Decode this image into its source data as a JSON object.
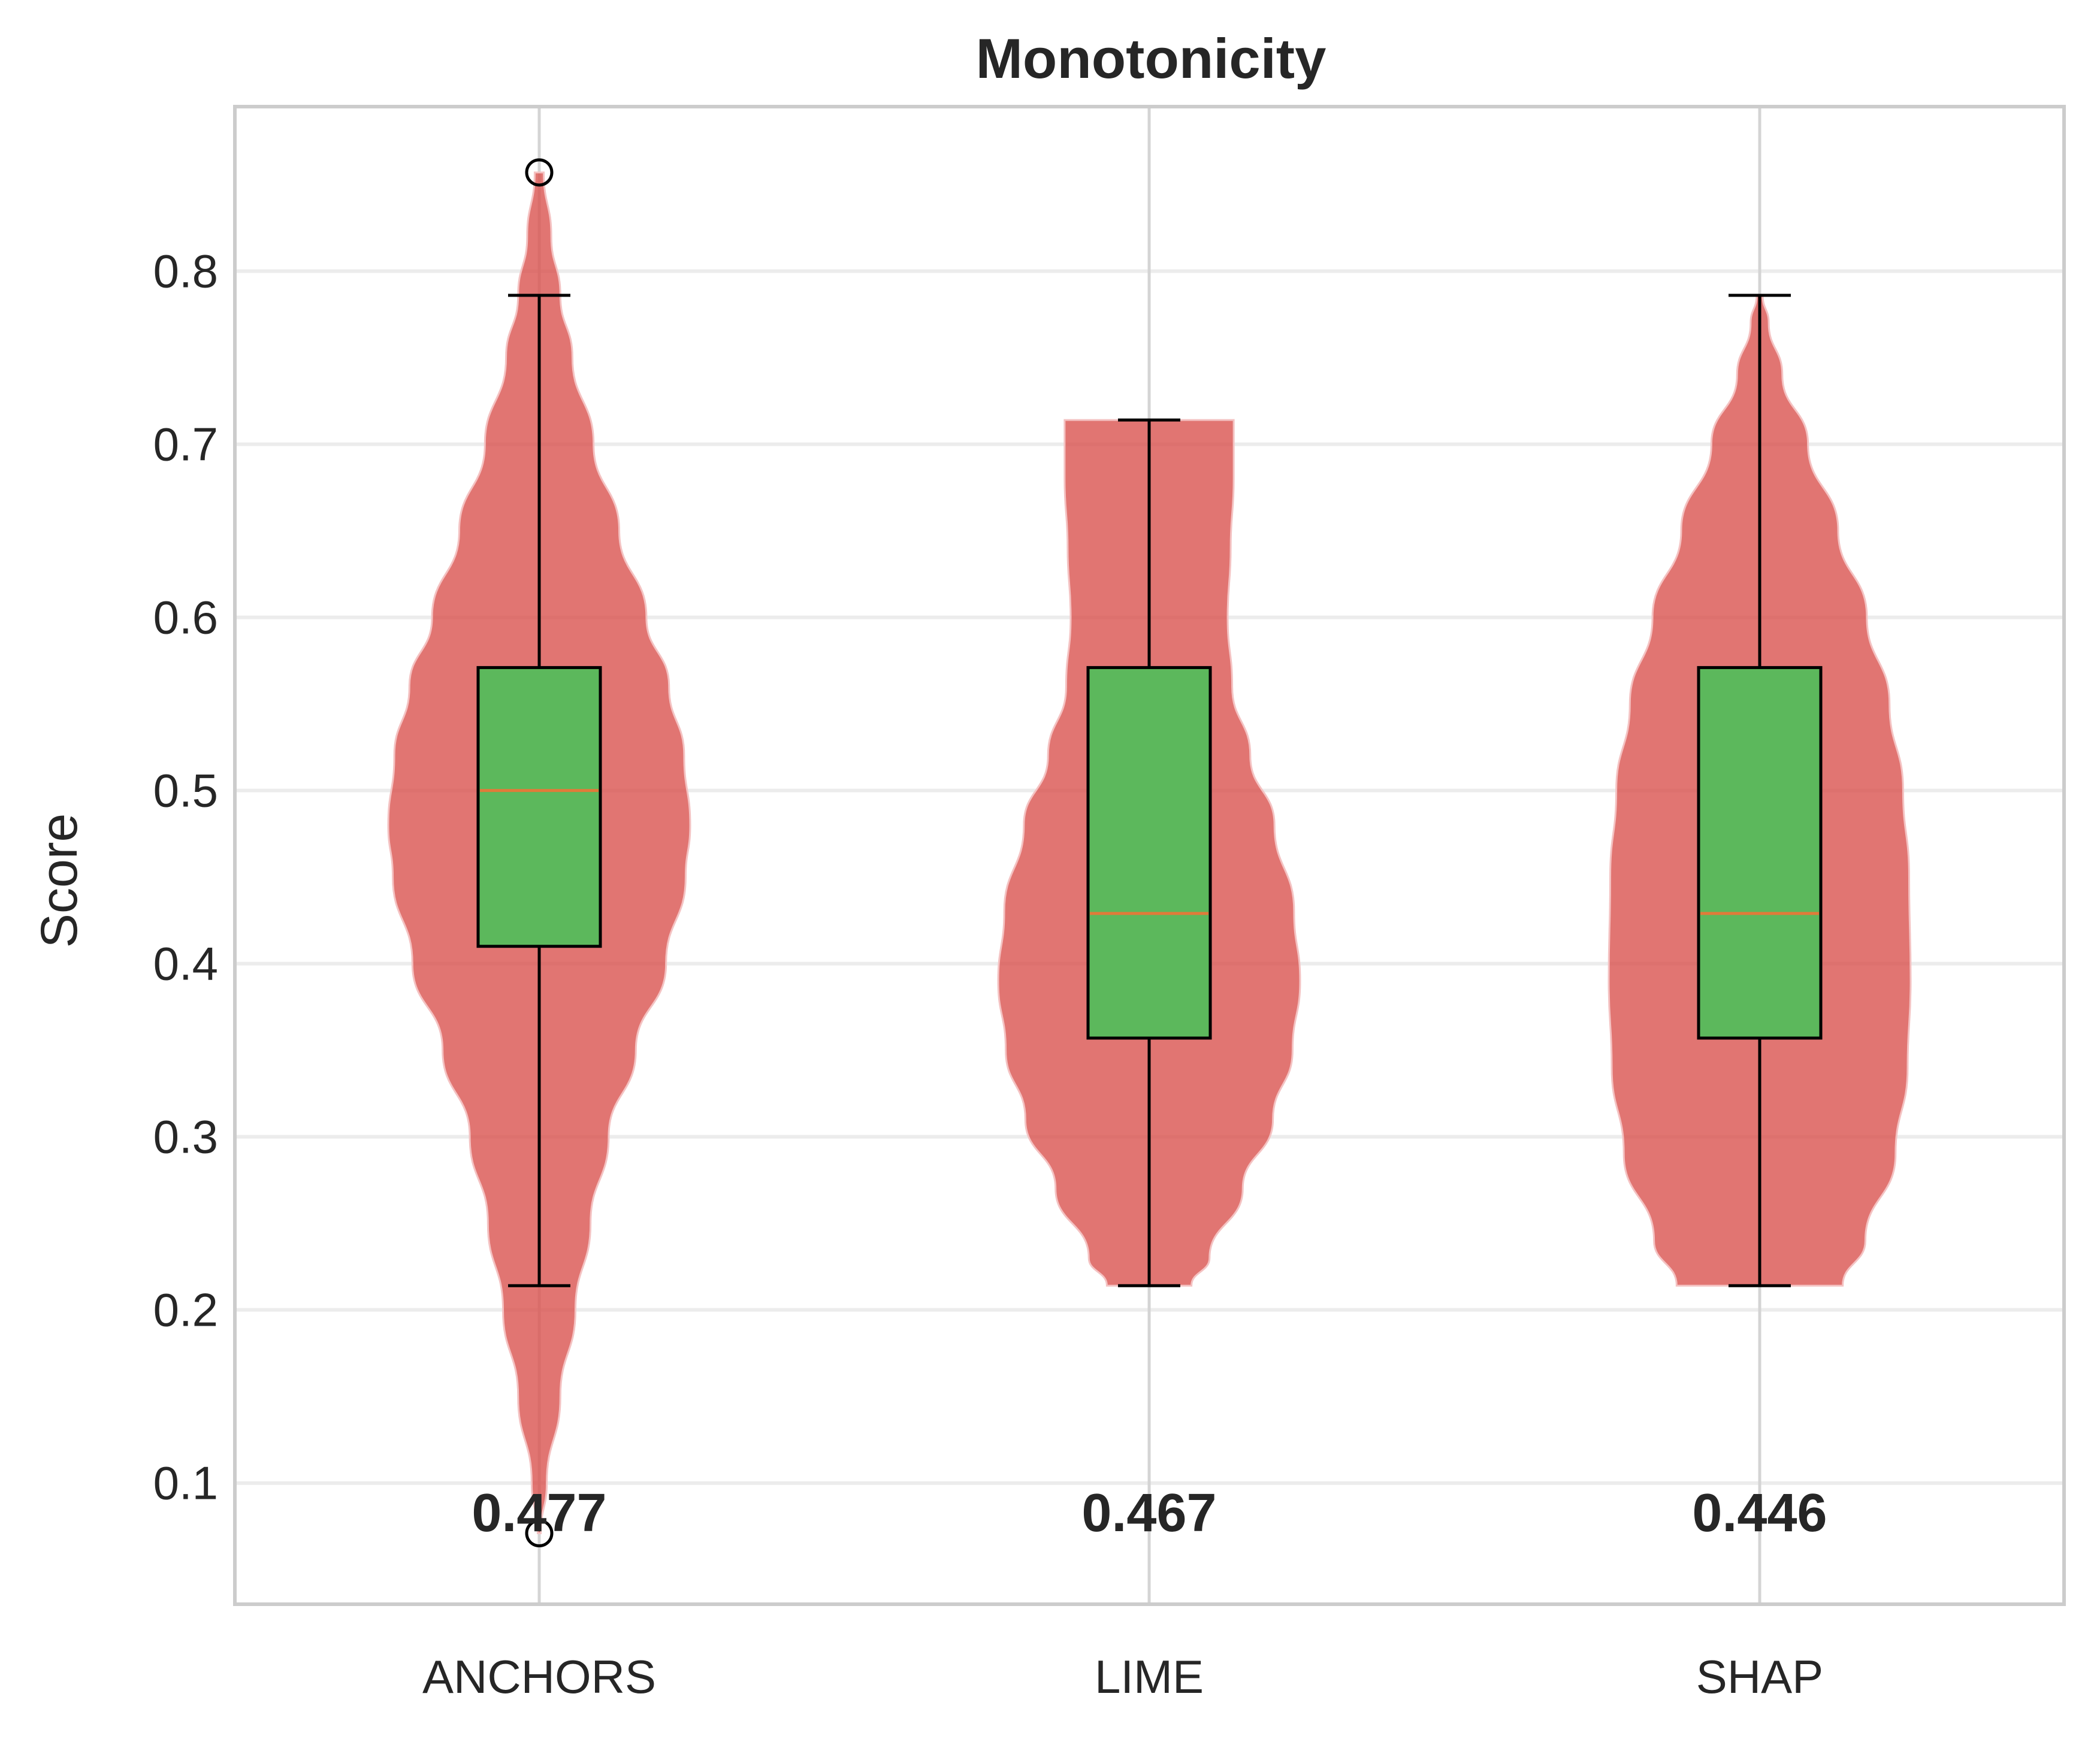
{
  "chart_data": {
    "type": "violin",
    "title": "Monotonicity",
    "xlabel": "",
    "ylabel": "Score",
    "ylim": [
      0.03,
      0.895
    ],
    "yticks": [
      "0.1",
      "0.2",
      "0.3",
      "0.4",
      "0.5",
      "0.6",
      "0.7",
      "0.8"
    ],
    "grid": true,
    "categories": [
      "ANCHORS",
      "LIME",
      "SHAP"
    ],
    "colors": {
      "violin": "#d9534f",
      "box": "#5cb85c",
      "median": "#e07b39",
      "whisker": "#000000"
    },
    "series": [
      {
        "category": "ANCHORS",
        "mean_label": "0.477",
        "box": {
          "q1": 0.41,
          "median": 0.5,
          "q3": 0.571,
          "whisker_low": 0.214,
          "whisker_high": 0.786
        },
        "outliers": [
          0.857,
          0.071
        ],
        "density": [
          [
            0.071,
            0.01
          ],
          [
            0.1,
            0.05
          ],
          [
            0.15,
            0.14
          ],
          [
            0.2,
            0.24
          ],
          [
            0.25,
            0.34
          ],
          [
            0.3,
            0.46
          ],
          [
            0.35,
            0.64
          ],
          [
            0.4,
            0.84
          ],
          [
            0.45,
            0.97
          ],
          [
            0.48,
            1.0
          ],
          [
            0.52,
            0.96
          ],
          [
            0.56,
            0.86
          ],
          [
            0.6,
            0.71
          ],
          [
            0.65,
            0.53
          ],
          [
            0.7,
            0.36
          ],
          [
            0.75,
            0.22
          ],
          [
            0.786,
            0.14
          ],
          [
            0.82,
            0.08
          ],
          [
            0.857,
            0.03
          ]
        ]
      },
      {
        "category": "LIME",
        "mean_label": "0.467",
        "box": {
          "q1": 0.357,
          "median": 0.429,
          "q3": 0.571,
          "whisker_low": 0.214,
          "whisker_high": 0.714
        },
        "outliers": [],
        "density": [
          [
            0.214,
            0.28
          ],
          [
            0.23,
            0.4
          ],
          [
            0.27,
            0.62
          ],
          [
            0.31,
            0.82
          ],
          [
            0.35,
            0.95
          ],
          [
            0.39,
            1.0
          ],
          [
            0.43,
            0.96
          ],
          [
            0.48,
            0.83
          ],
          [
            0.52,
            0.67
          ],
          [
            0.56,
            0.55
          ],
          [
            0.6,
            0.52
          ],
          [
            0.64,
            0.54
          ],
          [
            0.68,
            0.56
          ],
          [
            0.714,
            0.56
          ]
        ]
      },
      {
        "category": "SHAP",
        "mean_label": "0.446",
        "box": {
          "q1": 0.357,
          "median": 0.429,
          "q3": 0.571,
          "whisker_low": 0.214,
          "whisker_high": 0.786
        },
        "outliers": [],
        "density": [
          [
            0.214,
            0.55
          ],
          [
            0.24,
            0.7
          ],
          [
            0.29,
            0.9
          ],
          [
            0.34,
            0.98
          ],
          [
            0.39,
            1.0
          ],
          [
            0.45,
            0.99
          ],
          [
            0.5,
            0.95
          ],
          [
            0.55,
            0.86
          ],
          [
            0.6,
            0.71
          ],
          [
            0.65,
            0.52
          ],
          [
            0.7,
            0.32
          ],
          [
            0.74,
            0.15
          ],
          [
            0.77,
            0.06
          ],
          [
            0.786,
            0.02
          ]
        ]
      }
    ]
  }
}
